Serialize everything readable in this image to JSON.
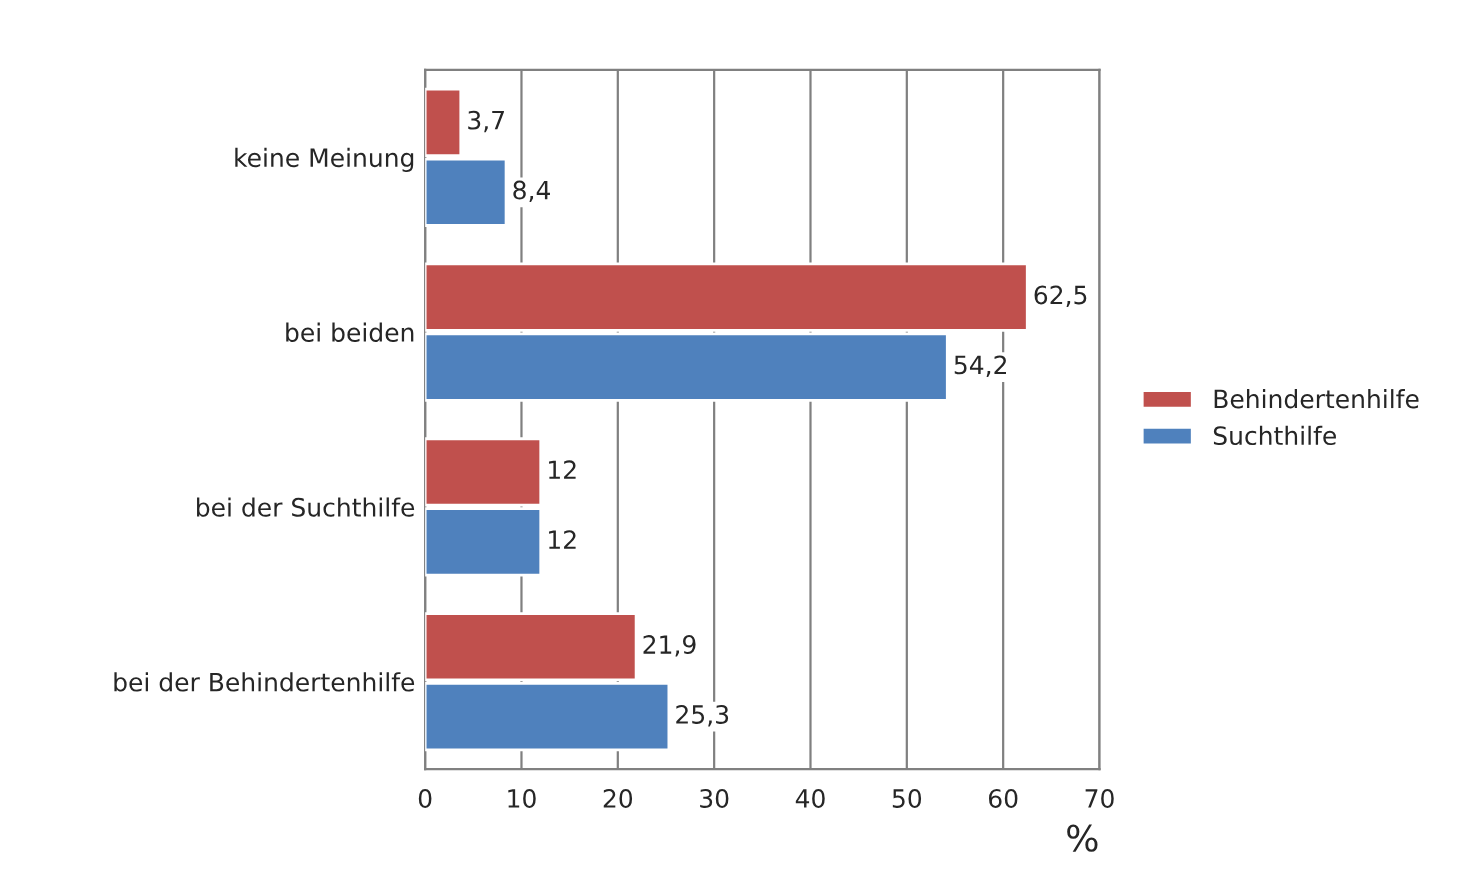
{
  "chart_data": {
    "type": "bar",
    "orientation": "horizontal",
    "categories": [
      "keine Meinung",
      "bei beiden",
      "bei der Suchthilfe",
      "bei der Behindertenhilfe"
    ],
    "series": [
      {
        "name": "Behindertenhilfe",
        "color": "#c0504d",
        "values": [
          3.7,
          62.5,
          12,
          21.9
        ],
        "value_labels": [
          "3,7",
          "62,5",
          "12",
          "21,9"
        ]
      },
      {
        "name": "Suchthilfe",
        "color": "#4f81bd",
        "values": [
          8.4,
          54.2,
          12,
          25.3
        ],
        "value_labels": [
          "8,4",
          "54,2",
          "12",
          "25,3"
        ]
      }
    ],
    "xlabel": "%",
    "xlim": [
      0,
      70
    ],
    "xticks": [
      0,
      10,
      20,
      30,
      40,
      50,
      60,
      70
    ],
    "grid": "x",
    "legend": "right"
  }
}
